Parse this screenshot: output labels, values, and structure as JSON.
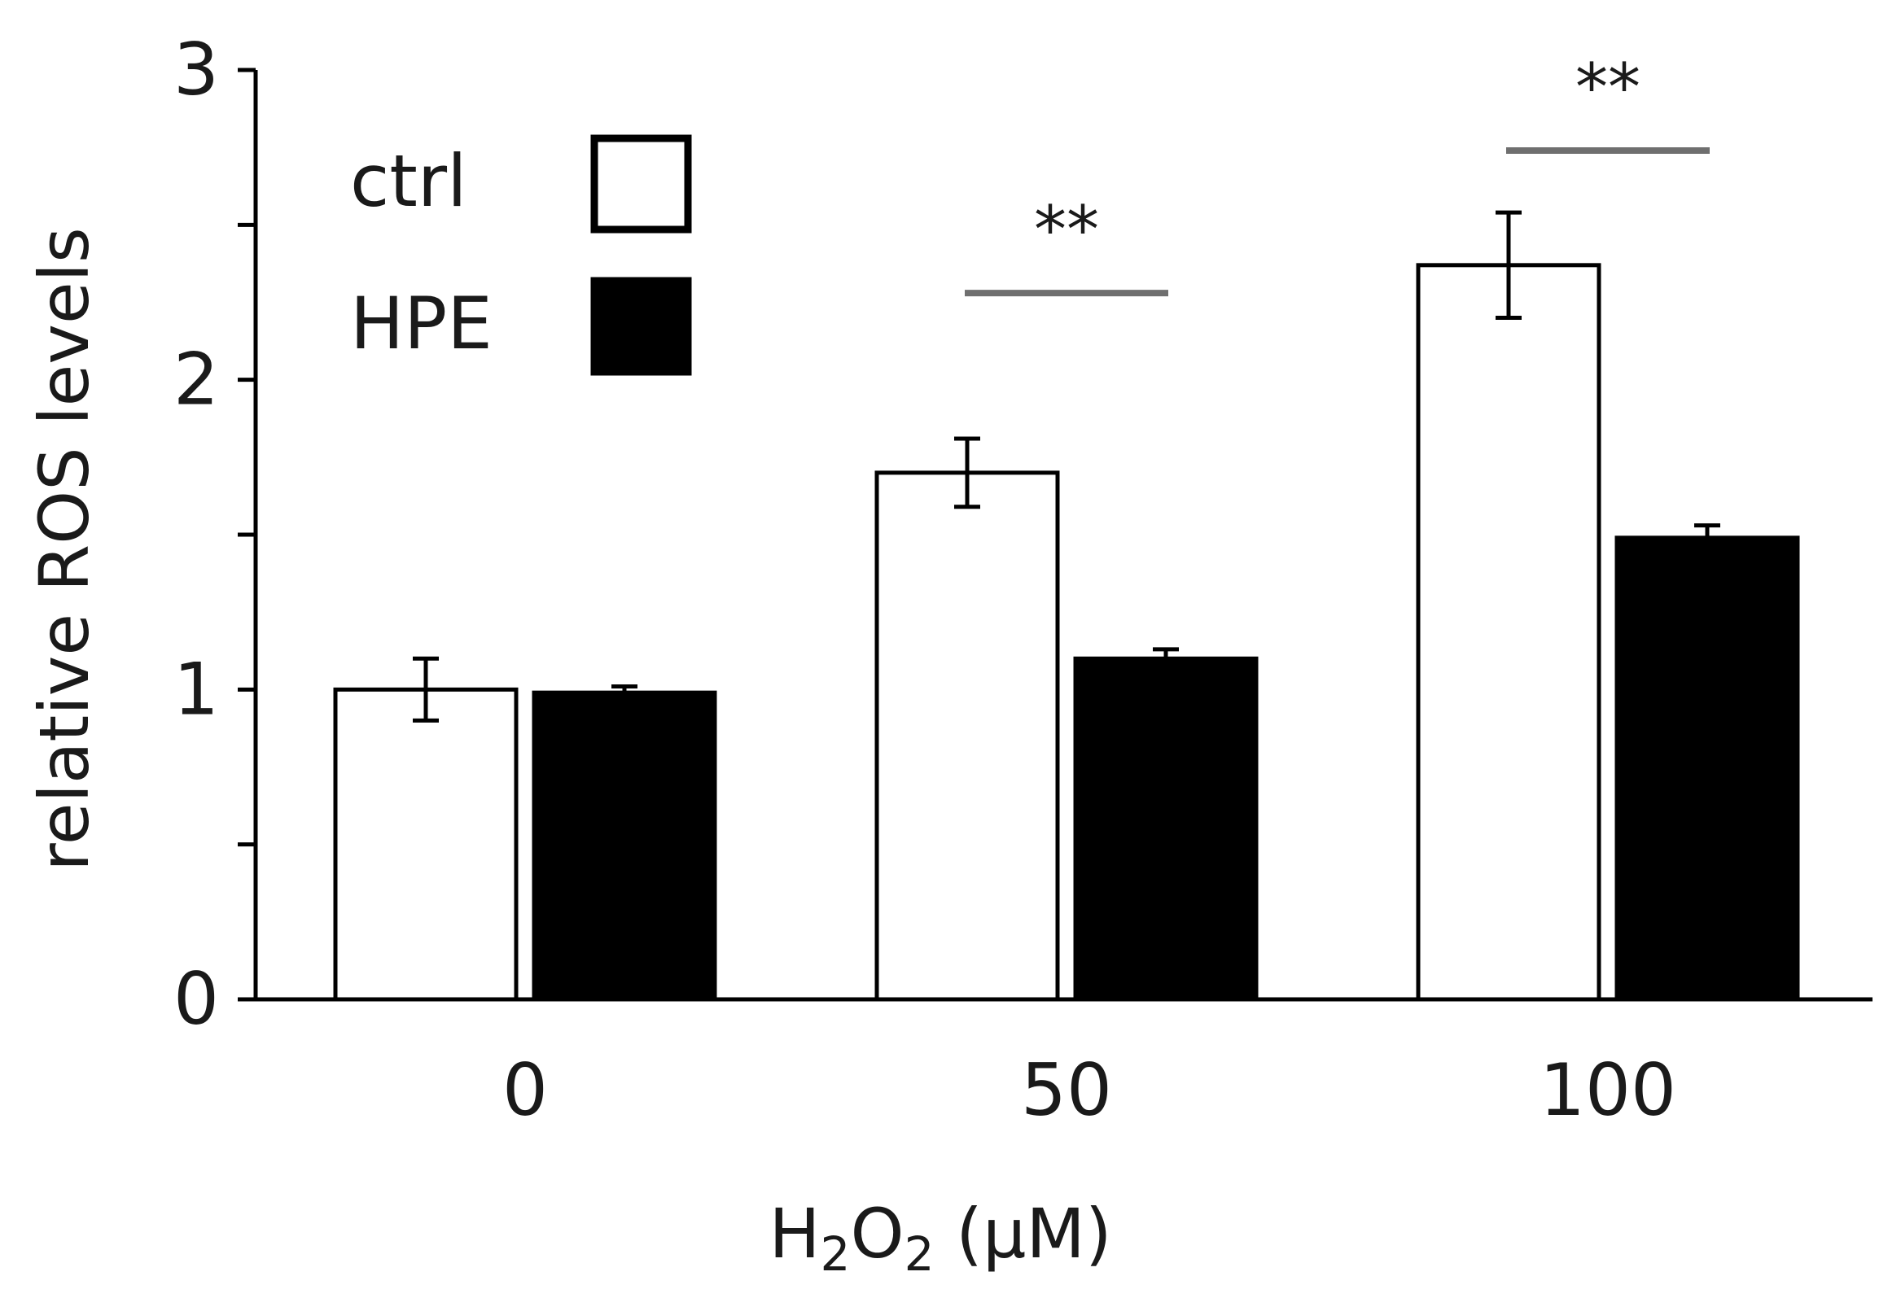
{
  "chart_data": {
    "type": "bar",
    "title": "",
    "xlabel_parts": [
      {
        "text": "H",
        "sub": false
      },
      {
        "text": "2",
        "sub": true
      },
      {
        "text": "O",
        "sub": false
      },
      {
        "text": "2",
        "sub": true
      },
      {
        "text": " (μM)",
        "sub": false
      }
    ],
    "ylabel": "relative ROS levels",
    "categories": [
      "0",
      "50",
      "100"
    ],
    "ylim": [
      0,
      3
    ],
    "yticks": [
      0,
      1,
      2,
      3
    ],
    "yminor": [
      0.5,
      1.5,
      2.5
    ],
    "series": [
      {
        "name": "ctrl",
        "values": [
          1.0,
          1.7,
          2.37
        ],
        "errors": [
          0.1,
          0.11,
          0.17
        ],
        "fill": "#ffffff"
      },
      {
        "name": "HPE",
        "values": [
          0.99,
          1.1,
          1.49
        ],
        "errors": [
          0.02,
          0.03,
          0.04
        ],
        "fill": "#000000"
      }
    ],
    "significance": [
      {
        "category_index": 1,
        "label": "**",
        "y": 2.28
      },
      {
        "category_index": 2,
        "label": "**",
        "y": 2.74
      }
    ],
    "legend": "top-left",
    "grid": false
  }
}
